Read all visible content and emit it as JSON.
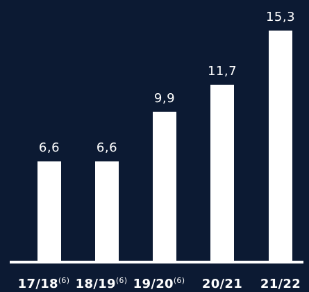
{
  "chart_data": {
    "type": "bar",
    "categories": [
      "17/18",
      "18/19",
      "19/20",
      "20/21",
      "21/22"
    ],
    "category_notes": [
      "(6)",
      "(6)",
      "(6)",
      "",
      ""
    ],
    "values": [
      6.6,
      6.6,
      9.9,
      11.7,
      15.3
    ],
    "value_labels": [
      "6,6",
      "6,6",
      "9,9",
      "11,7",
      "15,3"
    ],
    "ylim": [
      0,
      16.5
    ],
    "grid": false,
    "legend": "none",
    "colors": {
      "background": "#0c1a33",
      "bar": "#ffffff",
      "text": "#ffffff"
    }
  }
}
